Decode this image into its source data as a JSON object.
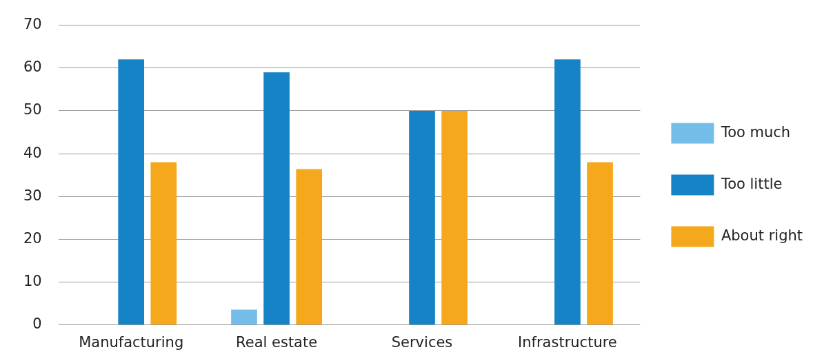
{
  "chart_data": {
    "type": "bar",
    "categories": [
      "Manufacturing",
      "Real estate",
      "Services",
      "Infrastructure"
    ],
    "series": [
      {
        "name": "Too much",
        "color": "#74bde8",
        "values": [
          0,
          3.6,
          0,
          0
        ]
      },
      {
        "name": "Too little",
        "color": "#1683c6",
        "values": [
          62,
          59,
          50,
          62
        ]
      },
      {
        "name": "About right",
        "color": "#f6a81c",
        "values": [
          38,
          36.4,
          50,
          38
        ]
      }
    ],
    "ylim": [
      0,
      70
    ],
    "yticks": [
      0,
      10,
      20,
      30,
      40,
      50,
      60,
      70
    ],
    "grid": "y",
    "legend": "right"
  }
}
